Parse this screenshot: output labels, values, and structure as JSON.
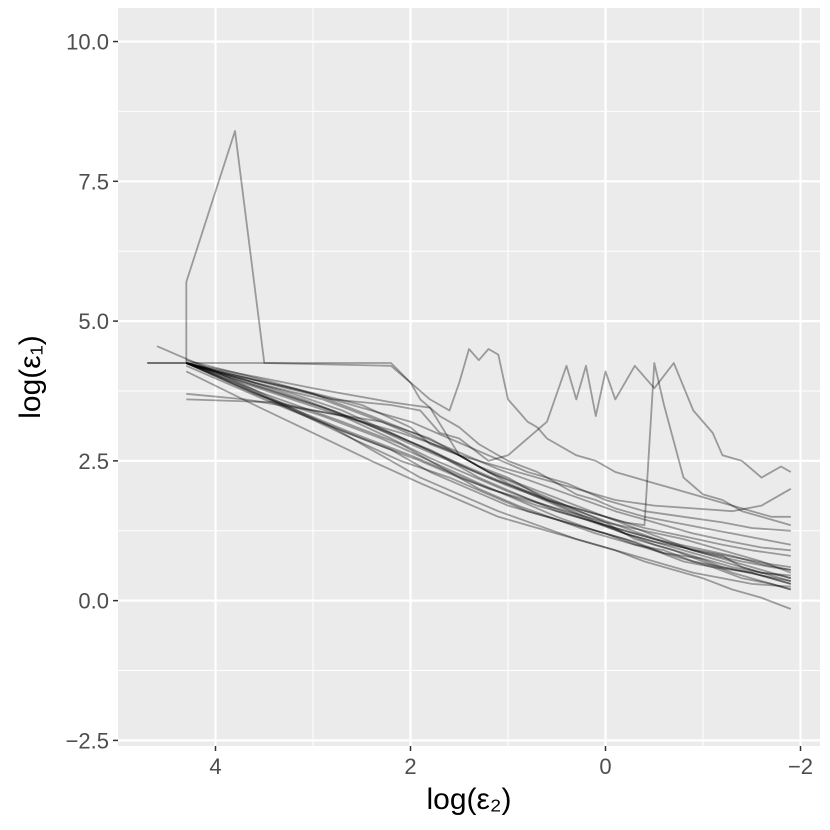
{
  "chart_data": {
    "type": "line",
    "xlabel": "log(ε₂)",
    "ylabel": "log(ε₁)",
    "x_reversed": true,
    "xlim": [
      5.0,
      -2.2
    ],
    "ylim": [
      -2.6,
      10.6
    ],
    "x_ticks": [
      4,
      2,
      0,
      -2
    ],
    "x_tick_labels": [
      "4",
      "2",
      "0",
      "−2"
    ],
    "y_ticks": [
      -2.5,
      0.0,
      2.5,
      5.0,
      7.5,
      10.0
    ],
    "y_tick_labels": [
      "−2.5",
      "0.0",
      "2.5",
      "5.0",
      "7.5",
      "10.0"
    ],
    "grid": true,
    "legend": "none",
    "colors": {
      "panel": "#ebebeb",
      "grid": "#ffffff",
      "line": "#000000",
      "tick": "#4d4d4d"
    },
    "line_opacity": 0.35,
    "series": [
      {
        "x": [
          4.7,
          4.3,
          4.3,
          3.8,
          3.5,
          2.2,
          2.0,
          1.9,
          1.7,
          1.5,
          1.3,
          1.0,
          0.7,
          0.5,
          0.3,
          0.1,
          -0.1,
          -0.4,
          -0.7,
          -1.0,
          -1.3,
          -1.6,
          -1.9
        ],
        "y": [
          4.25,
          4.25,
          5.7,
          8.4,
          4.25,
          4.2,
          3.9,
          3.6,
          3.3,
          3.1,
          2.8,
          2.5,
          2.3,
          2.1,
          1.9,
          1.8,
          1.65,
          1.5,
          1.4,
          1.3,
          1.2,
          1.1,
          1.0
        ]
      },
      {
        "x": [
          4.7,
          4.3,
          3.9,
          3.4,
          2.2,
          2.0,
          1.8,
          1.6,
          1.5,
          1.4,
          1.3,
          1.2,
          1.1,
          1.0,
          0.9,
          0.8,
          0.7,
          0.6,
          0.5,
          0.3,
          0.1,
          -0.1,
          -0.3,
          -0.5,
          -0.7,
          -0.9,
          -1.1,
          -1.3,
          -1.5,
          -1.7,
          -1.9
        ],
        "y": [
          4.25,
          4.25,
          4.25,
          4.25,
          4.25,
          3.9,
          3.6,
          3.4,
          3.9,
          4.5,
          4.3,
          4.5,
          4.4,
          3.6,
          3.4,
          3.2,
          3.1,
          2.9,
          2.8,
          2.6,
          2.5,
          2.3,
          2.2,
          2.1,
          2.0,
          1.9,
          1.8,
          1.7,
          1.6,
          1.5,
          1.5
        ]
      },
      {
        "x": [
          4.3,
          3.5,
          2.8,
          2.2,
          1.9,
          1.7,
          1.5,
          1.2,
          1.0,
          0.6,
          0.4,
          0.3,
          0.2,
          0.1,
          0.0,
          -0.1,
          -0.3,
          -0.5,
          -0.7,
          -0.9,
          -1.1,
          -1.2,
          -1.4,
          -1.6,
          -1.8,
          -1.9
        ],
        "y": [
          4.25,
          3.9,
          3.6,
          3.5,
          3.4,
          3.0,
          2.9,
          2.5,
          2.6,
          3.2,
          4.2,
          3.6,
          4.2,
          3.3,
          4.1,
          3.6,
          4.2,
          3.8,
          4.25,
          3.4,
          3.0,
          2.6,
          2.5,
          2.2,
          2.4,
          2.3
        ]
      },
      {
        "x": [
          4.3,
          3.0,
          2.2,
          2.0,
          1.8,
          1.5,
          1.3,
          1.0,
          0.8,
          0.6,
          0.4,
          0.2,
          0.0,
          -0.2,
          -0.4,
          -0.5,
          -0.6,
          -0.8,
          -1.0,
          -1.2,
          -1.4,
          -1.6,
          -1.8,
          -1.9
        ],
        "y": [
          4.25,
          3.8,
          3.55,
          3.5,
          3.45,
          2.6,
          2.4,
          2.2,
          2.0,
          1.8,
          1.7,
          1.6,
          1.5,
          1.4,
          1.35,
          4.25,
          3.5,
          2.2,
          1.9,
          1.8,
          1.6,
          1.5,
          1.4,
          1.35
        ]
      },
      {
        "x": [
          4.3,
          4.0,
          3.2,
          2.5,
          2.0,
          1.8,
          1.5,
          1.2,
          0.9,
          0.6,
          0.3,
          0.0,
          -0.3,
          -0.6,
          -0.9,
          -1.2,
          -1.4,
          -1.6,
          -1.8,
          -1.9
        ],
        "y": [
          4.25,
          4.1,
          3.8,
          3.5,
          3.1,
          2.8,
          2.6,
          2.3,
          2.1,
          1.9,
          1.7,
          1.5,
          1.3,
          1.1,
          0.9,
          0.8,
          0.6,
          0.5,
          0.45,
          0.4
        ]
      },
      {
        "x": [
          4.3,
          3.5,
          2.8,
          2.2,
          1.8,
          1.4,
          1.0,
          0.6,
          0.2,
          -0.2,
          -0.5,
          -0.8,
          -1.1,
          -1.4,
          -1.7,
          -1.9
        ],
        "y": [
          4.2,
          3.6,
          3.1,
          2.7,
          2.3,
          2.0,
          1.7,
          1.5,
          1.3,
          1.1,
          0.9,
          0.7,
          0.6,
          0.4,
          0.3,
          0.2
        ]
      },
      {
        "x": [
          4.3,
          3.6,
          3.0,
          2.4,
          1.9,
          1.5,
          1.1,
          0.7,
          0.3,
          -0.1,
          -0.4,
          -0.7,
          -1.0,
          -1.3,
          -1.6,
          -1.9
        ],
        "y": [
          4.1,
          3.5,
          3.0,
          2.5,
          2.1,
          1.8,
          1.5,
          1.3,
          1.1,
          0.9,
          0.7,
          0.55,
          0.4,
          0.2,
          0.05,
          -0.15
        ]
      },
      {
        "x": [
          4.3,
          3.8,
          3.2,
          2.6,
          2.1,
          1.6,
          1.2,
          0.8,
          0.4,
          0.0,
          -0.3,
          -0.6,
          -0.9,
          -1.2,
          -1.5,
          -1.9
        ],
        "y": [
          4.25,
          3.9,
          3.4,
          2.9,
          2.5,
          2.2,
          1.9,
          1.6,
          1.4,
          1.2,
          1.0,
          0.9,
          0.7,
          0.6,
          0.5,
          0.3
        ]
      },
      {
        "x": [
          4.3,
          3.4,
          2.7,
          2.1,
          1.6,
          1.2,
          0.8,
          0.4,
          0.0,
          -0.3,
          -0.7,
          -1.0,
          -1.3,
          -1.6,
          -1.9
        ],
        "y": [
          3.6,
          3.55,
          3.3,
          3.0,
          2.7,
          2.3,
          2.0,
          1.7,
          1.4,
          1.1,
          0.9,
          0.7,
          0.5,
          0.35,
          0.2
        ]
      },
      {
        "x": [
          4.3,
          3.7,
          3.0,
          2.3,
          1.8,
          1.4,
          1.0,
          0.6,
          0.2,
          -0.2,
          -0.5,
          -0.9,
          -1.2,
          -1.6,
          -1.9
        ],
        "y": [
          3.7,
          3.6,
          3.4,
          3.2,
          2.9,
          2.5,
          2.1,
          1.8,
          1.5,
          1.2,
          1.0,
          0.8,
          0.6,
          0.45,
          0.35
        ]
      },
      {
        "x": [
          4.6,
          4.0,
          3.4,
          2.8,
          2.3,
          1.9,
          1.5,
          1.1,
          0.7,
          0.3,
          -0.1,
          -0.5,
          -0.9,
          -1.2,
          -1.5,
          -1.9
        ],
        "y": [
          4.55,
          4.1,
          3.6,
          3.1,
          2.6,
          2.2,
          1.9,
          1.6,
          1.35,
          1.1,
          0.9,
          0.7,
          0.5,
          0.4,
          0.3,
          0.25
        ]
      },
      {
        "x": [
          4.3,
          3.6,
          2.9,
          2.3,
          1.8,
          1.3,
          0.9,
          0.5,
          0.1,
          -0.3,
          -0.6,
          -1.0,
          -1.3,
          -1.6,
          -1.9
        ],
        "y": [
          4.25,
          3.7,
          3.3,
          2.9,
          2.5,
          2.1,
          1.8,
          1.5,
          1.25,
          1.05,
          0.85,
          0.75,
          0.6,
          0.5,
          0.45
        ]
      },
      {
        "x": [
          4.3,
          3.8,
          3.2,
          2.7,
          2.2,
          1.7,
          1.3,
          0.9,
          0.5,
          0.1,
          -0.3,
          -0.7,
          -1.0,
          -1.4,
          -1.7,
          -1.9
        ],
        "y": [
          4.25,
          4.0,
          3.7,
          3.4,
          3.0,
          2.6,
          2.2,
          1.9,
          1.6,
          1.4,
          1.2,
          1.0,
          0.85,
          0.7,
          0.6,
          0.55
        ]
      },
      {
        "x": [
          4.3,
          3.5,
          2.8,
          2.2,
          1.7,
          1.3,
          0.9,
          0.5,
          0.1,
          -0.2,
          -0.5,
          -0.8,
          -1.1,
          -1.4,
          -1.7,
          -1.9
        ],
        "y": [
          4.25,
          3.8,
          3.4,
          3.0,
          2.6,
          2.3,
          2.0,
          1.7,
          1.4,
          1.2,
          1.05,
          0.95,
          0.85,
          0.75,
          0.65,
          0.6
        ]
      },
      {
        "x": [
          4.3,
          3.4,
          2.6,
          2.0,
          1.6,
          1.2,
          0.8,
          0.4,
          0.0,
          -0.4,
          -0.8,
          -1.2,
          -1.5,
          -1.9
        ],
        "y": [
          4.3,
          3.9,
          3.5,
          3.2,
          2.9,
          2.6,
          2.3,
          2.1,
          1.8,
          1.6,
          1.5,
          1.4,
          1.3,
          1.25
        ]
      },
      {
        "x": [
          4.3,
          3.6,
          2.9,
          2.3,
          1.9,
          1.5,
          1.1,
          0.7,
          0.3,
          -0.1,
          -0.5,
          -0.9,
          -1.3,
          -1.6,
          -1.9
        ],
        "y": [
          4.25,
          3.9,
          3.6,
          3.2,
          2.9,
          2.6,
          2.4,
          2.2,
          2.0,
          1.8,
          1.7,
          1.65,
          1.6,
          1.7,
          2.0
        ]
      },
      {
        "x": [
          4.3,
          3.7,
          3.1,
          2.5,
          2.0,
          1.6,
          1.2,
          0.8,
          0.4,
          0.0,
          -0.4,
          -0.8,
          -1.2,
          -1.5,
          -1.9
        ],
        "y": [
          4.25,
          3.95,
          3.6,
          3.2,
          2.8,
          2.5,
          2.2,
          1.95,
          1.7,
          1.5,
          1.3,
          1.15,
          1.0,
          0.9,
          0.8
        ]
      },
      {
        "x": [
          4.3,
          3.5,
          2.7,
          2.1,
          1.7,
          1.3,
          0.9,
          0.5,
          0.1,
          -0.3,
          -0.7,
          -1.1,
          -1.5,
          -1.9
        ],
        "y": [
          4.25,
          3.7,
          3.2,
          2.8,
          2.4,
          2.0,
          1.7,
          1.45,
          1.2,
          1.0,
          0.8,
          0.6,
          0.5,
          0.3
        ]
      },
      {
        "x": [
          4.3,
          3.9,
          3.3,
          2.7,
          2.2,
          1.8,
          1.4,
          1.0,
          0.6,
          0.2,
          -0.2,
          -0.6,
          -1.0,
          -1.4,
          -1.7,
          -1.9
        ],
        "y": [
          4.25,
          4.0,
          3.65,
          3.3,
          2.9,
          2.55,
          2.25,
          1.95,
          1.7,
          1.45,
          1.2,
          1.0,
          0.8,
          0.6,
          0.45,
          0.35
        ]
      },
      {
        "x": [
          4.3,
          3.3,
          2.6,
          2.0,
          1.6,
          1.2,
          0.8,
          0.4,
          0.0,
          -0.4,
          -0.8,
          -1.2,
          -1.6,
          -1.9
        ],
        "y": [
          4.25,
          3.5,
          3.0,
          2.6,
          2.3,
          2.0,
          1.8,
          1.6,
          1.4,
          1.25,
          1.1,
          0.9,
          0.7,
          0.5
        ]
      },
      {
        "x": [
          4.3,
          3.6,
          2.9,
          2.3,
          1.8,
          1.4,
          1.0,
          0.6,
          0.2,
          -0.2,
          -0.6,
          -1.0,
          -1.4,
          -1.7,
          -1.9
        ],
        "y": [
          4.25,
          3.85,
          3.45,
          3.05,
          2.7,
          2.35,
          2.05,
          1.8,
          1.55,
          1.3,
          1.05,
          0.85,
          0.65,
          0.5,
          0.4
        ]
      },
      {
        "x": [
          4.3,
          3.2,
          2.5,
          1.9,
          1.5,
          1.1,
          0.7,
          0.3,
          -0.1,
          -0.5,
          -0.9,
          -1.3,
          -1.6,
          -1.9
        ],
        "y": [
          4.25,
          3.4,
          2.9,
          2.5,
          2.2,
          1.95,
          1.7,
          1.5,
          1.3,
          1.1,
          0.95,
          0.8,
          0.65,
          0.55
        ]
      },
      {
        "x": [
          4.3,
          3.7,
          3.0,
          2.4,
          1.9,
          1.5,
          1.1,
          0.7,
          0.3,
          -0.1,
          -0.5,
          -0.9,
          -1.3,
          -1.6,
          -1.9
        ],
        "y": [
          4.25,
          4.0,
          3.7,
          3.3,
          2.95,
          2.65,
          2.35,
          2.1,
          1.85,
          1.6,
          1.4,
          1.2,
          1.05,
          0.95,
          0.9
        ]
      }
    ]
  }
}
